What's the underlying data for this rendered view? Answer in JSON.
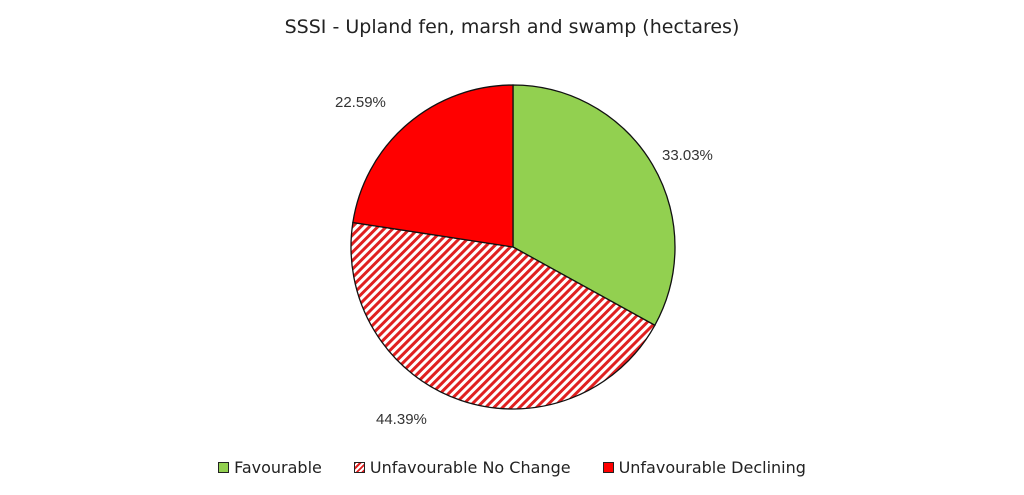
{
  "chart_data": {
    "type": "pie",
    "title": "SSSI - Upland fen, marsh and swamp (hectares)",
    "categories": [
      "Favourable",
      "Unfavourable No Change",
      "Unfavourable Declining"
    ],
    "values": [
      33.03,
      44.39,
      22.59
    ],
    "labels": [
      "33.03%",
      "44.39%",
      "22.59%"
    ],
    "colors": [
      "#92d050",
      "hatched #ff0000",
      "#ff0000"
    ],
    "start_angle": "12 o'clock, clockwise",
    "legend_position": "bottom"
  },
  "title": "SSSI - Upland fen, marsh and swamp (hectares)",
  "labels": {
    "favourable": "33.03%",
    "no_change": "44.39%",
    "declining": "22.59%"
  },
  "legend": [
    {
      "label": "Favourable"
    },
    {
      "label": "Unfavourable No Change"
    },
    {
      "label": "Unfavourable Declining"
    }
  ]
}
